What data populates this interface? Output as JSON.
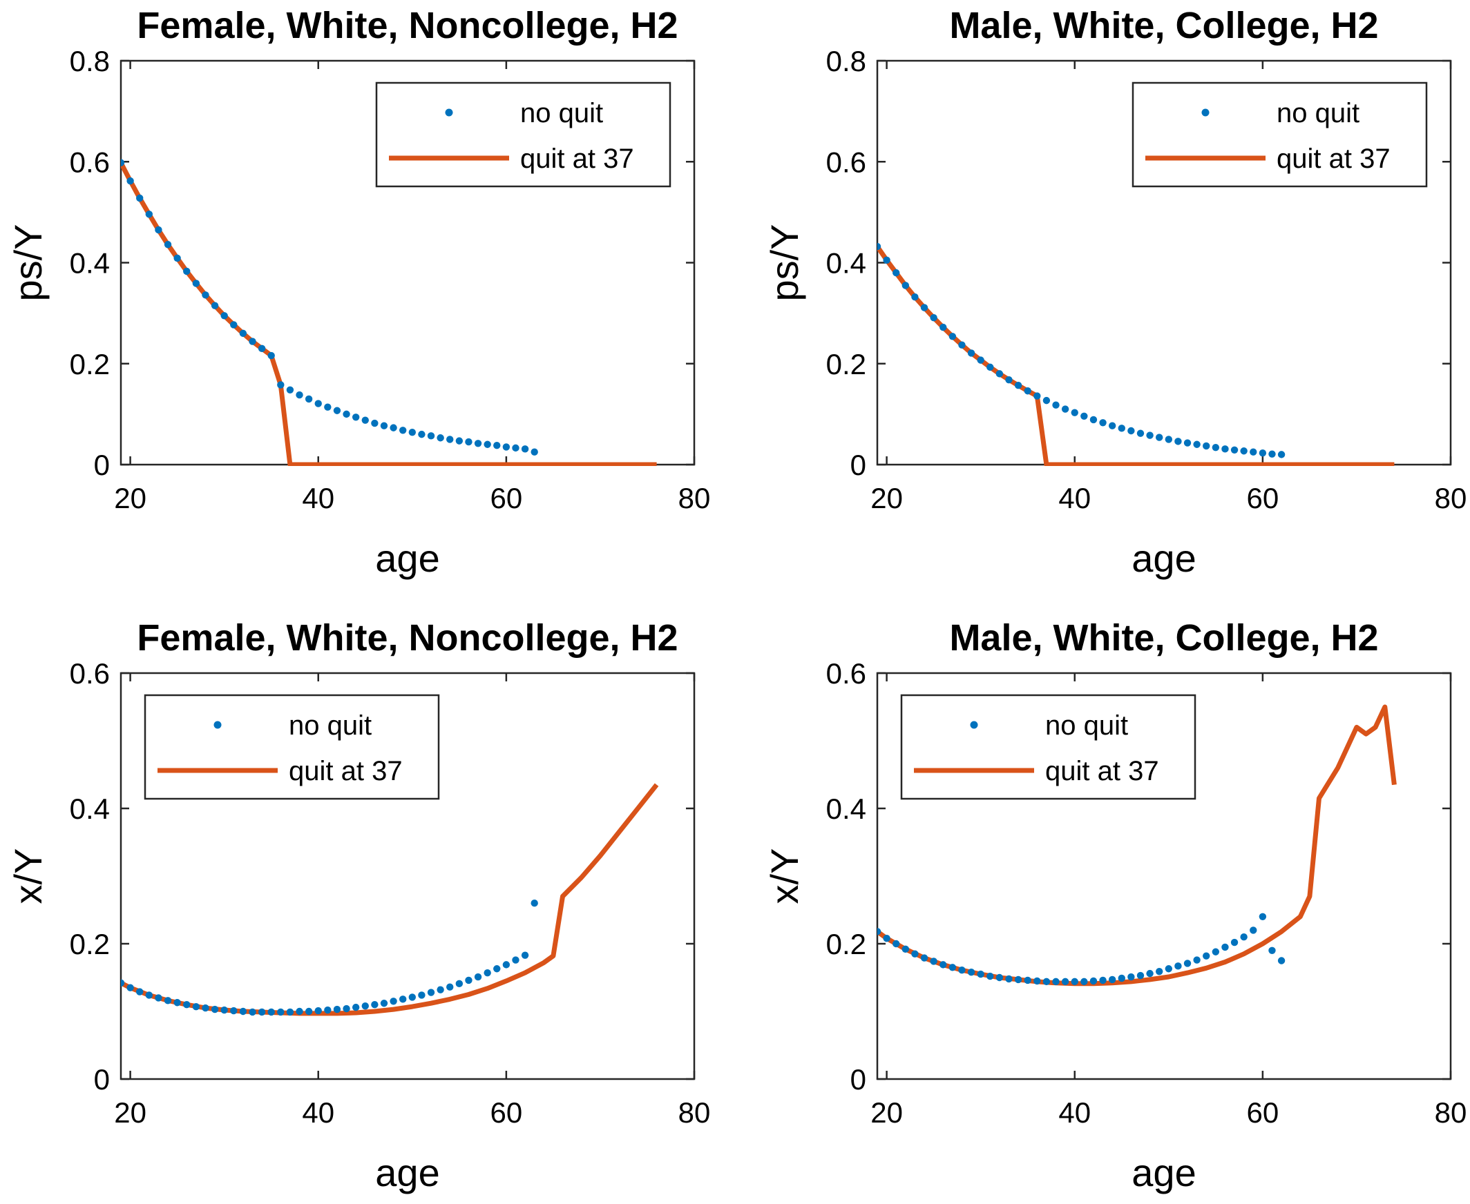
{
  "chart_data": [
    {
      "type": "line",
      "title": "Female, White, Noncollege, H2",
      "xlabel": "age",
      "ylabel": "ps/Y",
      "xlim": [
        19,
        80
      ],
      "ylim": [
        0,
        0.8
      ],
      "xticks": [
        "20",
        "40",
        "60",
        "80"
      ],
      "yticks": [
        "0",
        "0.2",
        "0.4",
        "0.6",
        "0.8"
      ],
      "grid": false,
      "legend_position": "top-right",
      "series": [
        {
          "name": "no quit",
          "style": "dots",
          "color": "#0072BD",
          "x": [
            19,
            20,
            21,
            22,
            23,
            24,
            25,
            26,
            27,
            28,
            29,
            30,
            31,
            32,
            33,
            34,
            35,
            36,
            37,
            38,
            39,
            40,
            41,
            42,
            43,
            44,
            45,
            46,
            47,
            48,
            49,
            50,
            51,
            52,
            53,
            54,
            55,
            56,
            57,
            58,
            59,
            60,
            61,
            62,
            63
          ],
          "y": [
            0.598,
            0.562,
            0.528,
            0.496,
            0.465,
            0.436,
            0.409,
            0.383,
            0.359,
            0.336,
            0.315,
            0.295,
            0.277,
            0.26,
            0.244,
            0.23,
            0.216,
            0.158,
            0.148,
            0.138,
            0.13,
            0.121,
            0.114,
            0.107,
            0.1,
            0.094,
            0.088,
            0.082,
            0.077,
            0.073,
            0.068,
            0.064,
            0.06,
            0.057,
            0.053,
            0.05,
            0.047,
            0.045,
            0.042,
            0.04,
            0.038,
            0.035,
            0.033,
            0.031,
            0.025
          ]
        },
        {
          "name": "quit at 37",
          "style": "line",
          "color": "#D95319",
          "x": [
            19,
            20,
            21,
            22,
            23,
            24,
            25,
            26,
            27,
            28,
            29,
            30,
            31,
            32,
            33,
            34,
            35,
            36,
            37,
            38,
            76
          ],
          "y": [
            0.598,
            0.562,
            0.528,
            0.496,
            0.465,
            0.436,
            0.409,
            0.383,
            0.359,
            0.336,
            0.315,
            0.295,
            0.277,
            0.26,
            0.244,
            0.23,
            0.216,
            0.158,
            0.0,
            0.0,
            0.0
          ]
        }
      ]
    },
    {
      "type": "line",
      "title": "Male, White, College, H2",
      "xlabel": "age",
      "ylabel": "ps/Y",
      "xlim": [
        19,
        80
      ],
      "ylim": [
        0,
        0.8
      ],
      "xticks": [
        "20",
        "40",
        "60",
        "80"
      ],
      "yticks": [
        "0",
        "0.2",
        "0.4",
        "0.6",
        "0.8"
      ],
      "grid": false,
      "legend_position": "top-right",
      "series": [
        {
          "name": "no quit",
          "style": "dots",
          "color": "#0072BD",
          "x": [
            19,
            20,
            21,
            22,
            23,
            24,
            25,
            26,
            27,
            28,
            29,
            30,
            31,
            32,
            33,
            34,
            35,
            36,
            37,
            38,
            39,
            40,
            41,
            42,
            43,
            44,
            45,
            46,
            47,
            48,
            49,
            50,
            51,
            52,
            53,
            54,
            55,
            56,
            57,
            58,
            59,
            60,
            61,
            62
          ],
          "y": [
            0.432,
            0.405,
            0.38,
            0.355,
            0.332,
            0.311,
            0.291,
            0.272,
            0.254,
            0.237,
            0.221,
            0.207,
            0.193,
            0.18,
            0.168,
            0.157,
            0.146,
            0.136,
            0.127,
            0.118,
            0.11,
            0.103,
            0.096,
            0.089,
            0.083,
            0.077,
            0.072,
            0.067,
            0.062,
            0.058,
            0.054,
            0.05,
            0.046,
            0.043,
            0.04,
            0.037,
            0.034,
            0.031,
            0.029,
            0.027,
            0.025,
            0.023,
            0.021,
            0.02
          ]
        },
        {
          "name": "quit at 37",
          "style": "line",
          "color": "#D95319",
          "x": [
            19,
            20,
            21,
            22,
            23,
            24,
            25,
            26,
            27,
            28,
            29,
            30,
            31,
            32,
            33,
            34,
            35,
            36,
            37,
            38,
            74
          ],
          "y": [
            0.432,
            0.405,
            0.38,
            0.355,
            0.332,
            0.311,
            0.291,
            0.272,
            0.254,
            0.237,
            0.221,
            0.207,
            0.193,
            0.18,
            0.168,
            0.157,
            0.146,
            0.136,
            0.0,
            0.0,
            0.0
          ]
        }
      ]
    },
    {
      "type": "line",
      "title": "Female, White, Noncollege, H2",
      "xlabel": "age",
      "ylabel": "x/Y",
      "xlim": [
        19,
        80
      ],
      "ylim": [
        0,
        0.6
      ],
      "xticks": [
        "20",
        "40",
        "60",
        "80"
      ],
      "yticks": [
        "0",
        "0.2",
        "0.4",
        "0.6"
      ],
      "grid": false,
      "legend_position": "top-left",
      "series": [
        {
          "name": "no quit",
          "style": "dots",
          "color": "#0072BD",
          "x": [
            19,
            20,
            21,
            22,
            23,
            24,
            25,
            26,
            27,
            28,
            29,
            30,
            31,
            32,
            33,
            34,
            35,
            36,
            37,
            38,
            39,
            40,
            41,
            42,
            43,
            44,
            45,
            46,
            47,
            48,
            49,
            50,
            51,
            52,
            53,
            54,
            55,
            56,
            57,
            58,
            59,
            60,
            61,
            62,
            63
          ],
          "y": [
            0.142,
            0.135,
            0.129,
            0.124,
            0.12,
            0.116,
            0.113,
            0.11,
            0.107,
            0.105,
            0.103,
            0.102,
            0.101,
            0.1,
            0.099,
            0.099,
            0.099,
            0.099,
            0.099,
            0.1,
            0.1,
            0.101,
            0.102,
            0.103,
            0.104,
            0.106,
            0.108,
            0.11,
            0.112,
            0.115,
            0.118,
            0.121,
            0.124,
            0.128,
            0.132,
            0.136,
            0.141,
            0.146,
            0.151,
            0.157,
            0.163,
            0.169,
            0.176,
            0.183,
            0.26
          ]
        },
        {
          "name": "quit at 37",
          "style": "line",
          "color": "#D95319",
          "x": [
            19,
            20,
            22,
            24,
            26,
            28,
            30,
            32,
            34,
            36,
            38,
            40,
            42,
            44,
            46,
            48,
            50,
            52,
            54,
            56,
            58,
            60,
            62,
            64,
            65,
            66,
            68,
            70,
            72,
            74,
            76
          ],
          "y": [
            0.142,
            0.135,
            0.124,
            0.116,
            0.11,
            0.105,
            0.102,
            0.1,
            0.099,
            0.098,
            0.097,
            0.097,
            0.097,
            0.098,
            0.1,
            0.103,
            0.107,
            0.112,
            0.118,
            0.125,
            0.134,
            0.145,
            0.157,
            0.172,
            0.182,
            0.27,
            0.298,
            0.33,
            0.365,
            0.4,
            0.435
          ]
        }
      ]
    },
    {
      "type": "line",
      "title": "Male, White, College, H2",
      "xlabel": "age",
      "ylabel": "x/Y",
      "xlim": [
        19,
        80
      ],
      "ylim": [
        0,
        0.6
      ],
      "xticks": [
        "20",
        "40",
        "60",
        "80"
      ],
      "yticks": [
        "0",
        "0.2",
        "0.4",
        "0.6"
      ],
      "grid": false,
      "legend_position": "top-left",
      "series": [
        {
          "name": "no quit",
          "style": "dots",
          "color": "#0072BD",
          "x": [
            19,
            20,
            21,
            22,
            23,
            24,
            25,
            26,
            27,
            28,
            29,
            30,
            31,
            32,
            33,
            34,
            35,
            36,
            37,
            38,
            39,
            40,
            41,
            42,
            43,
            44,
            45,
            46,
            47,
            48,
            49,
            50,
            51,
            52,
            53,
            54,
            55,
            56,
            57,
            58,
            59,
            60,
            61,
            62
          ],
          "y": [
            0.218,
            0.208,
            0.2,
            0.192,
            0.185,
            0.179,
            0.174,
            0.169,
            0.165,
            0.161,
            0.158,
            0.155,
            0.152,
            0.15,
            0.148,
            0.147,
            0.146,
            0.145,
            0.144,
            0.144,
            0.144,
            0.144,
            0.144,
            0.145,
            0.146,
            0.147,
            0.149,
            0.151,
            0.153,
            0.156,
            0.159,
            0.163,
            0.167,
            0.171,
            0.176,
            0.182,
            0.188,
            0.195,
            0.202,
            0.21,
            0.22,
            0.24,
            0.19,
            0.175
          ]
        },
        {
          "name": "quit at 37",
          "style": "line",
          "color": "#D95319",
          "x": [
            19,
            20,
            22,
            24,
            26,
            28,
            30,
            32,
            34,
            36,
            38,
            40,
            42,
            44,
            46,
            48,
            50,
            52,
            54,
            56,
            58,
            60,
            62,
            64,
            65,
            66,
            68,
            70,
            71,
            72,
            73,
            74
          ],
          "y": [
            0.218,
            0.208,
            0.192,
            0.179,
            0.169,
            0.161,
            0.155,
            0.15,
            0.147,
            0.144,
            0.142,
            0.141,
            0.141,
            0.142,
            0.144,
            0.147,
            0.151,
            0.157,
            0.164,
            0.173,
            0.185,
            0.2,
            0.218,
            0.24,
            0.27,
            0.415,
            0.46,
            0.52,
            0.51,
            0.52,
            0.55,
            0.435
          ]
        }
      ]
    }
  ]
}
